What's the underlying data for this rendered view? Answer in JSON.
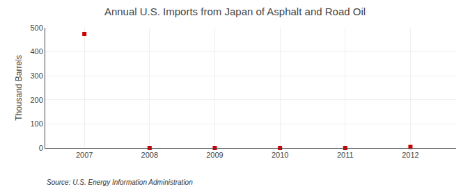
{
  "chart_data": {
    "type": "scatter",
    "title": "Annual U.S. Imports from Japan of Asphalt and Road Oil",
    "ylabel": "Thousand Barrels",
    "source": "Source: U.S. Energy Information Administration",
    "x": [
      2007,
      2008,
      2009,
      2010,
      2011,
      2012
    ],
    "values": [
      474,
      0,
      0,
      0,
      0,
      4
    ],
    "color": "#cc0000",
    "marker": "square",
    "xlim": [
      2006.4,
      2012.7
    ],
    "ylim": [
      0,
      500
    ],
    "xticks": [
      2007,
      2008,
      2009,
      2010,
      2011,
      2012
    ],
    "yticks": [
      0,
      100,
      200,
      300,
      400,
      500
    ],
    "grid": true
  }
}
